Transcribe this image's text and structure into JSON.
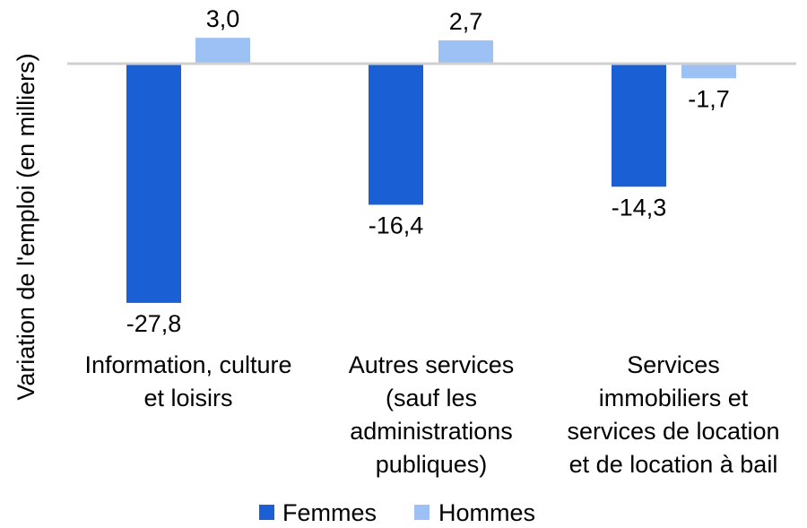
{
  "chart_data": {
    "type": "bar",
    "title": "",
    "xlabel": "",
    "ylabel": "Variation de l'emploi (en milliers)",
    "ylim": [
      -30,
      3.6
    ],
    "grid": false,
    "legend_position": "bottom",
    "categories": [
      [
        "Information, culture",
        "et loisirs"
      ],
      [
        "Autres services",
        "(sauf les",
        "administrations",
        "publiques)"
      ],
      [
        "Services",
        "immobiliers et",
        "services de location",
        "et de location à bail"
      ]
    ],
    "series": [
      {
        "name": "Femmes",
        "color": "#1a5fd4",
        "values": [
          -27.8,
          -16.4,
          -14.3
        ],
        "labels": [
          "-27,8",
          "-16,4",
          "-14,3"
        ]
      },
      {
        "name": "Hommes",
        "color": "#9dc0f5",
        "values": [
          3.0,
          2.7,
          -1.7
        ],
        "labels": [
          "3,0",
          "2,7",
          "-1,7"
        ]
      }
    ]
  }
}
